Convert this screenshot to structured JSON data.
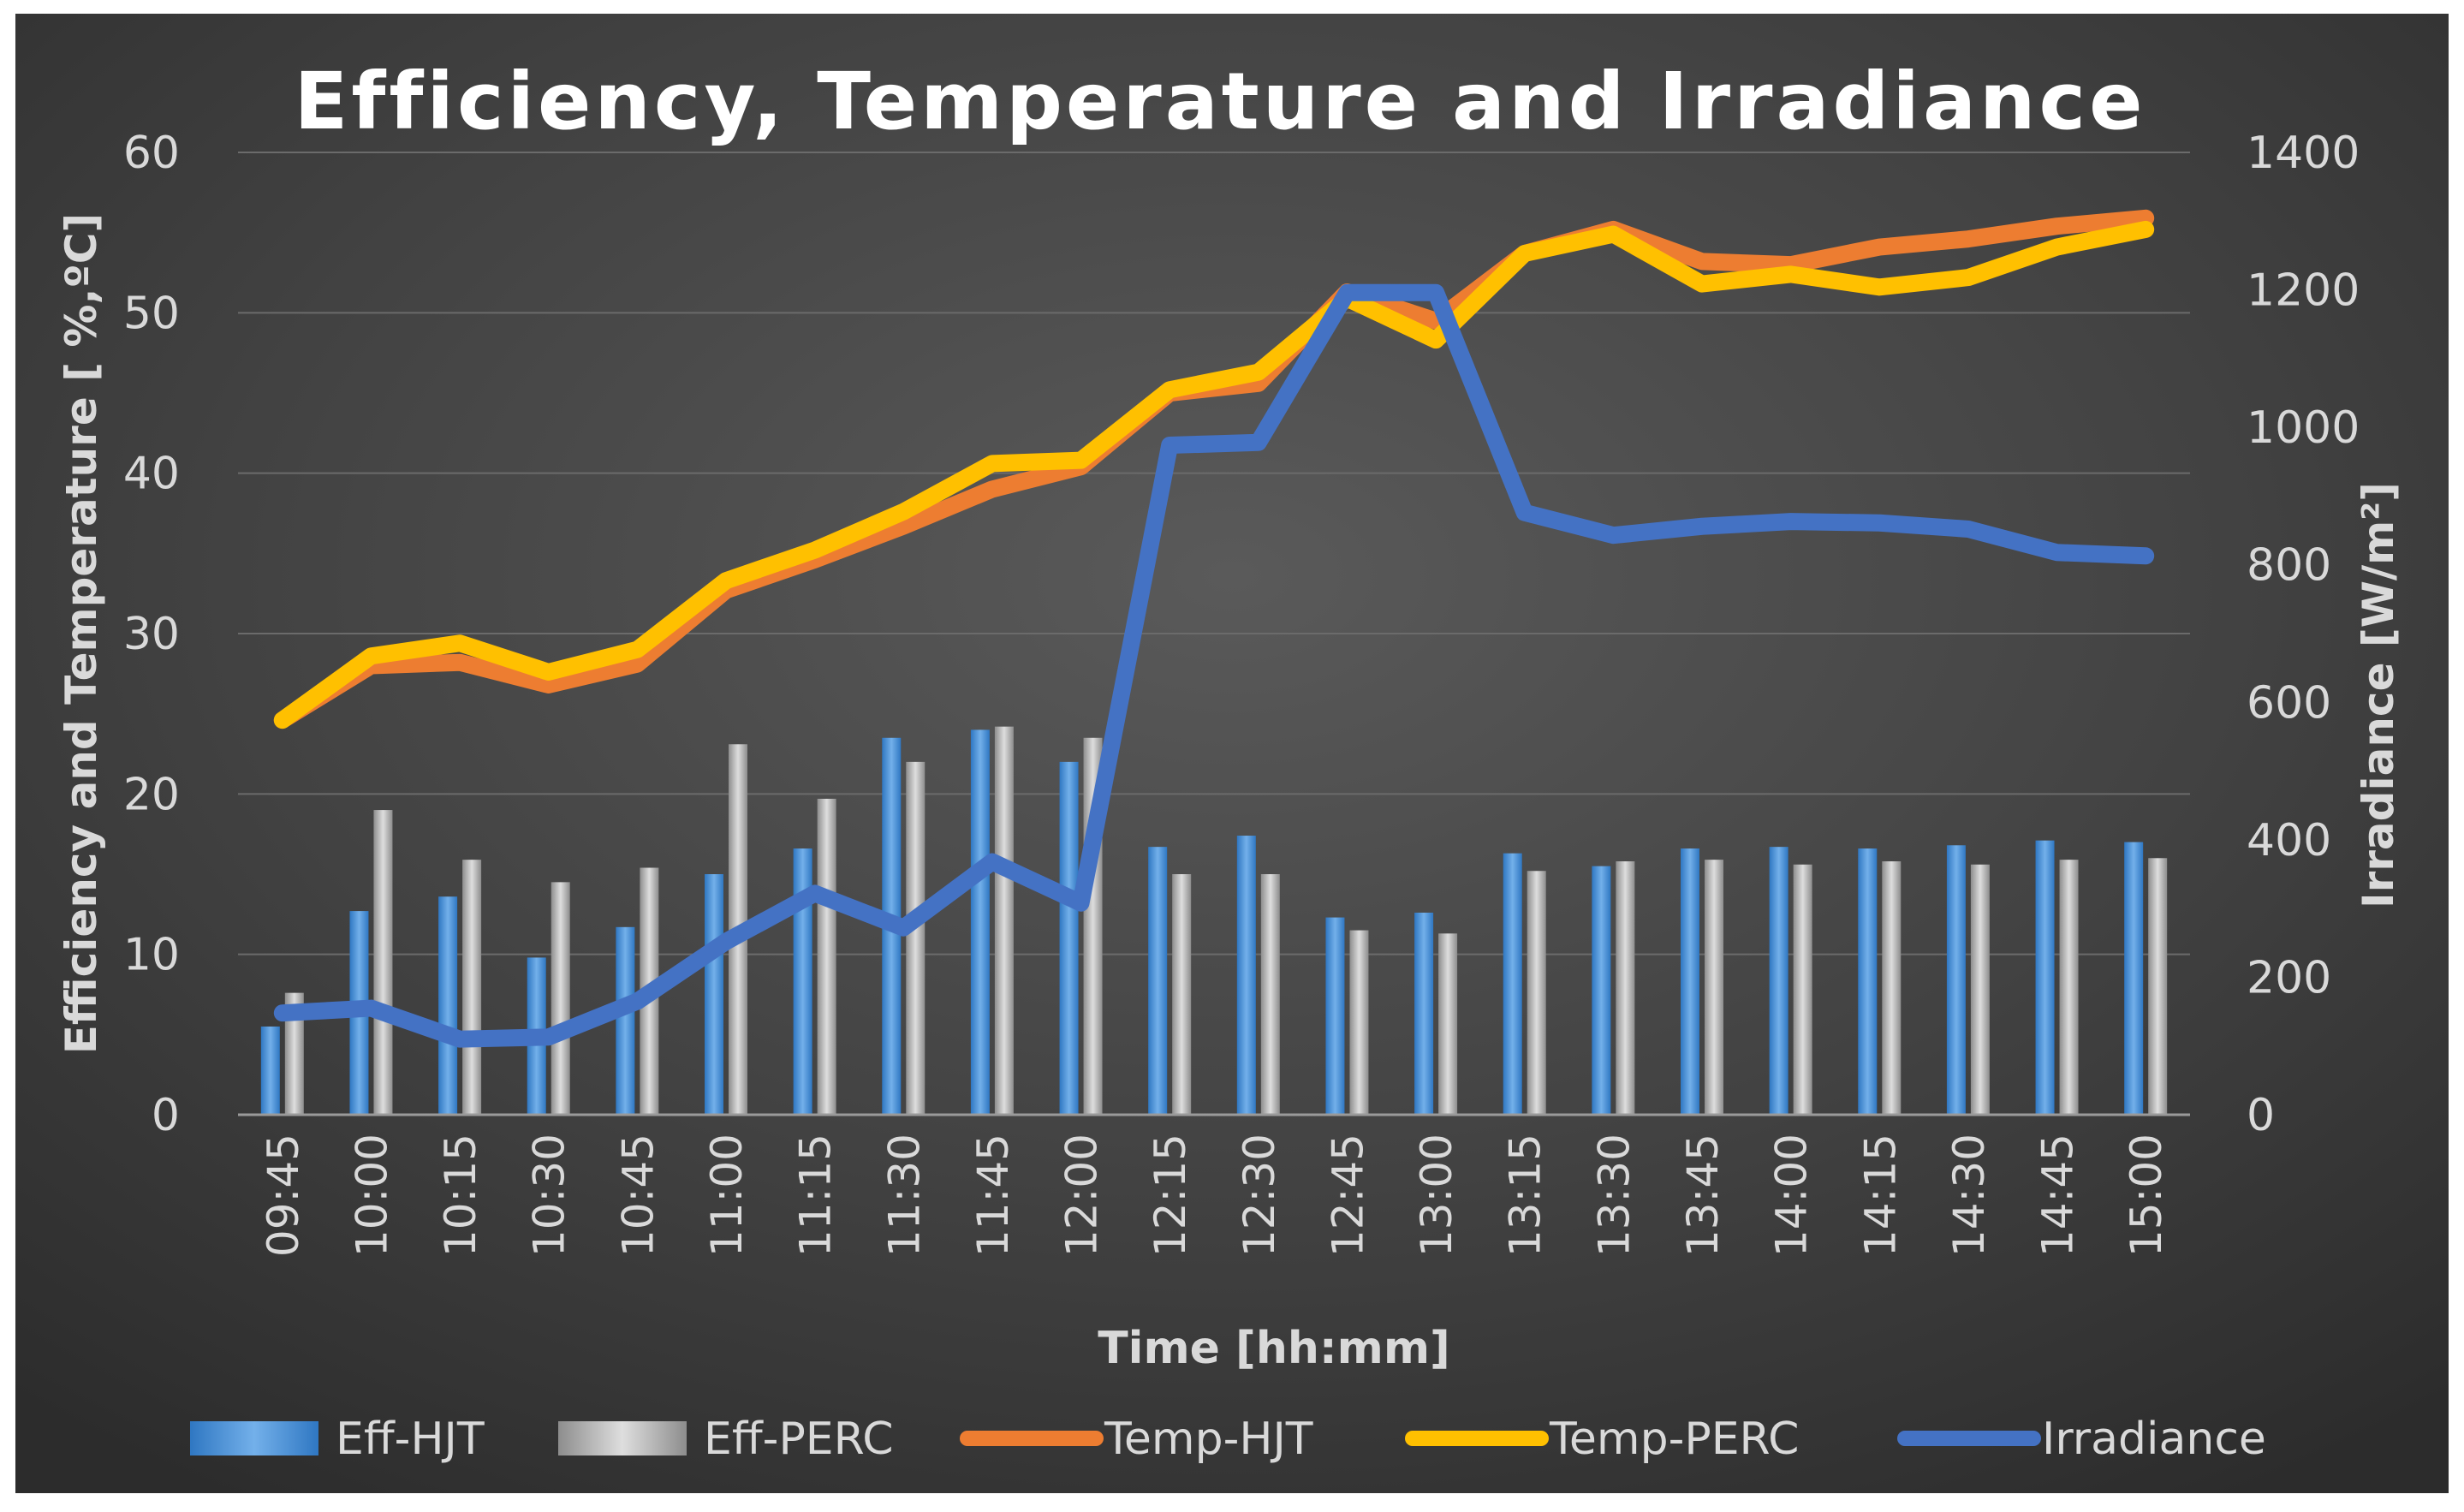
{
  "chart_data": {
    "type": "bar",
    "title": "Efficiency, Temperature and Irradiance",
    "xlabel": "Time [hh:mm]",
    "ylabel": "Efficiency and Temperature [ %,ºC]",
    "y2label": "Irradiance [W/m²]",
    "ylim": [
      0,
      60
    ],
    "y2lim": [
      0,
      1400
    ],
    "yticks": [
      "0",
      "10",
      "20",
      "30",
      "40",
      "50",
      "60"
    ],
    "y2ticks": [
      "0",
      "200",
      "400",
      "600",
      "800",
      "1000",
      "1200",
      "1400"
    ],
    "grid": true,
    "categories": [
      "09:45",
      "10:00",
      "10:15",
      "10:30",
      "10:45",
      "11:00",
      "11:15",
      "11:30",
      "11:45",
      "12:00",
      "12:15",
      "12:30",
      "12:45",
      "13:00",
      "13:15",
      "13:30",
      "13:45",
      "14:00",
      "14:15",
      "14:30",
      "14:45",
      "15:00"
    ],
    "series": [
      {
        "name": "Eff-HJT",
        "kind": "bar",
        "axis": "left",
        "color": "#5b9bd5",
        "values": [
          5.5,
          12.7,
          13.6,
          9.8,
          11.7,
          15.0,
          16.6,
          23.5,
          24.0,
          22.0,
          16.7,
          17.4,
          12.3,
          12.6,
          16.3,
          15.5,
          16.6,
          16.7,
          16.6,
          16.8,
          17.1,
          17.0
        ]
      },
      {
        "name": "Eff-PERC",
        "kind": "bar",
        "axis": "left",
        "color": "#a5a5a5",
        "values": [
          7.6,
          19.0,
          15.9,
          14.5,
          15.4,
          23.1,
          19.7,
          22.0,
          24.2,
          23.5,
          15.0,
          15.0,
          11.5,
          11.3,
          15.2,
          15.8,
          15.9,
          15.6,
          15.8,
          15.6,
          15.9,
          16.0
        ]
      },
      {
        "name": "Temp-HJT",
        "kind": "line",
        "axis": "left",
        "color": "#ed7d31",
        "values": [
          24.6,
          28.0,
          28.2,
          26.8,
          28.1,
          32.7,
          34.6,
          36.7,
          39.0,
          40.4,
          45.0,
          45.6,
          51.3,
          49.5,
          53.7,
          55.2,
          53.2,
          53.0,
          54.1,
          54.6,
          55.4,
          55.9
        ]
      },
      {
        "name": "Temp-PERC",
        "kind": "line",
        "axis": "left",
        "color": "#ffc000",
        "values": [
          24.6,
          28.6,
          29.4,
          27.6,
          29.0,
          33.3,
          35.2,
          37.6,
          40.6,
          40.8,
          45.2,
          46.3,
          50.9,
          48.3,
          53.7,
          54.9,
          51.8,
          52.4,
          51.6,
          52.2,
          54.1,
          55.2
        ]
      },
      {
        "name": "Irradiance",
        "kind": "line",
        "axis": "right",
        "color": "#4472c4",
        "values": [
          148,
          155,
          110,
          113,
          165,
          252,
          322,
          272,
          368,
          308,
          974,
          978,
          1196,
          1196,
          876,
          843,
          856,
          863,
          861,
          852,
          818,
          813
        ]
      }
    ]
  }
}
